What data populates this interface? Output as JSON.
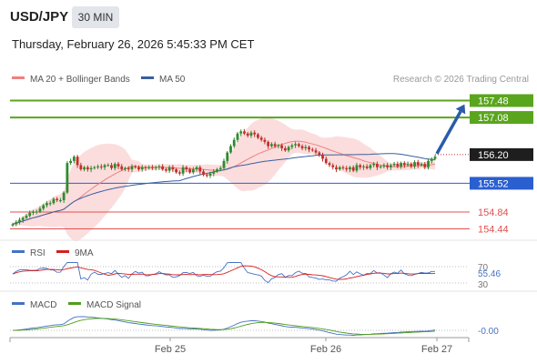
{
  "header": {
    "symbol": "USD/JPY",
    "timeframe": "30 MIN",
    "datetime": "Thursday, February 26, 2026 5:45:33 PM CET"
  },
  "legend": {
    "ma20_label": "MA 20 + Bollinger Bands",
    "ma50_label": "MA 50",
    "credit": "Research © 2026 Trading Central"
  },
  "colors": {
    "ma20": "#f08080",
    "ma50": "#3a5f9f",
    "bollinger_fill": "#fbd9d9",
    "resistance": "#5aa51e",
    "pivot": "#2a5fd0",
    "support": "#e05050",
    "arrow": "#2a5bab",
    "candle_up": "#2e8b2e",
    "candle_down": "#c0302a",
    "rsi": "#4472c4",
    "rsi_ma": "#d62020",
    "macd": "#4472c4",
    "macd_signal": "#4f9d1a"
  },
  "levels": {
    "resistance": [
      157.48,
      157.08
    ],
    "current": 156.2,
    "pivot": 155.52,
    "support": [
      154.84,
      154.44
    ]
  },
  "level_labels": {
    "r2": "157.48",
    "r1": "157.08",
    "current": "156.20",
    "pivot": "155.52",
    "s1": "154.84",
    "s2": "154.44"
  },
  "rsi_panel": {
    "rsi_label": "RSI",
    "ma_label": "9MA",
    "upper_label": "70",
    "lower_label": "30",
    "value_label": "55.46"
  },
  "macd_panel": {
    "macd_label": "MACD",
    "signal_label": "MACD Signal",
    "value_label": "-0.00"
  },
  "x_axis": {
    "labels": [
      "Feb 25",
      "Feb 26",
      "Feb 27"
    ]
  },
  "chart_data": {
    "type": "candlestick",
    "title": "USD/JPY",
    "timeframe": "30 MIN",
    "ylim": [
      154.3,
      157.75
    ],
    "closes": [
      154.55,
      154.6,
      154.65,
      154.7,
      154.75,
      154.82,
      154.85,
      154.85,
      154.92,
      155.0,
      155.05,
      155.05,
      155.15,
      155.12,
      155.12,
      155.3,
      156.0,
      156.05,
      156.15,
      155.95,
      155.85,
      155.9,
      155.85,
      155.88,
      155.9,
      155.92,
      155.9,
      155.95,
      155.95,
      155.88,
      155.98,
      155.92,
      155.85,
      155.88,
      155.85,
      155.92,
      155.9,
      155.85,
      155.9,
      155.88,
      155.9,
      155.88,
      155.9,
      155.92,
      155.85,
      155.82,
      155.9,
      155.85,
      155.78,
      155.75,
      155.9,
      155.85,
      155.78,
      155.85,
      155.9,
      155.8,
      155.72,
      155.7,
      155.75,
      155.8,
      155.85,
      155.88,
      156.05,
      156.25,
      156.4,
      156.55,
      156.7,
      156.75,
      156.7,
      156.65,
      156.72,
      156.68,
      156.6,
      156.55,
      156.5,
      156.4,
      156.45,
      156.4,
      156.42,
      156.35,
      156.3,
      156.38,
      156.42,
      156.45,
      156.4,
      156.35,
      156.38,
      156.32,
      156.3,
      156.25,
      156.2,
      156.1,
      156.0,
      155.95,
      155.9,
      155.85,
      155.9,
      155.88,
      155.85,
      155.9,
      155.82,
      155.95,
      155.9,
      155.92,
      155.88,
      155.95,
      155.98,
      155.9,
      155.92,
      155.95,
      155.9,
      155.95,
      155.98,
      155.92,
      156.0,
      155.95,
      155.98,
      155.92,
      156.02,
      155.95,
      155.98,
      155.9,
      156.05,
      156.1,
      156.15
    ],
    "rsi": {
      "current": 55.46,
      "levels": [
        70,
        30
      ]
    },
    "macd": {
      "current": -0.0
    },
    "x_ticks": [
      "Feb 25",
      "Feb 26",
      "Feb 27"
    ]
  }
}
